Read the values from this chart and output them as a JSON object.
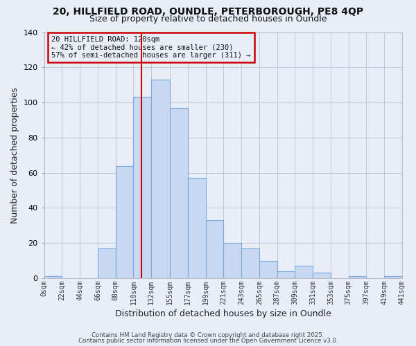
{
  "title_line1": "20, HILLFIELD ROAD, OUNDLE, PETERBOROUGH, PE8 4QP",
  "title_line2": "Size of property relative to detached houses in Oundle",
  "xlabel": "Distribution of detached houses by size in Oundle",
  "ylabel": "Number of detached properties",
  "bar_color": "#c8d8f0",
  "bar_edge_color": "#7aaadd",
  "background_color": "#e8eef8",
  "plot_bg_color": "#e8eef8",
  "grid_color": "#c0c8d8",
  "bin_edges": [
    0,
    22,
    44,
    66,
    88,
    110,
    132,
    155,
    177,
    199,
    221,
    243,
    265,
    287,
    309,
    331,
    353,
    375,
    397,
    419,
    441
  ],
  "bin_labels": [
    "0sqm",
    "22sqm",
    "44sqm",
    "66sqm",
    "88sqm",
    "110sqm",
    "132sqm",
    "155sqm",
    "177sqm",
    "199sqm",
    "221sqm",
    "243sqm",
    "265sqm",
    "287sqm",
    "309sqm",
    "331sqm",
    "353sqm",
    "375sqm",
    "397sqm",
    "419sqm",
    "441sqm"
  ],
  "counts": [
    1,
    0,
    0,
    17,
    64,
    103,
    113,
    97,
    57,
    33,
    20,
    17,
    10,
    4,
    7,
    3,
    0,
    1,
    0,
    1
  ],
  "vline_x": 120,
  "vline_color": "#cc0000",
  "ylim": [
    0,
    140
  ],
  "yticks": [
    0,
    20,
    40,
    60,
    80,
    100,
    120,
    140
  ],
  "annotation_title": "20 HILLFIELD ROAD: 120sqm",
  "annotation_line2": "← 42% of detached houses are smaller (230)",
  "annotation_line3": "57% of semi-detached houses are larger (311) →",
  "footer1": "Contains HM Land Registry data © Crown copyright and database right 2025.",
  "footer2": "Contains public sector information licensed under the Open Government Licence v3.0."
}
